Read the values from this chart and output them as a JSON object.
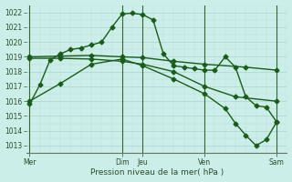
{
  "bg_color": "#cceee8",
  "grid_major_color": "#aad4ce",
  "grid_minor_color": "#bbddd8",
  "line_color": "#1a5c1a",
  "sep_line_color": "#336633",
  "title": "Pression niveau de la mer( hPa )",
  "ylim": [
    1012.5,
    1022.5
  ],
  "yticks": [
    1013,
    1014,
    1015,
    1016,
    1017,
    1018,
    1019,
    1020,
    1021,
    1022
  ],
  "day_labels": [
    "Mer",
    "Dim",
    "Jeu",
    "Ven",
    "Sam"
  ],
  "day_x": [
    0,
    9,
    11,
    17,
    24
  ],
  "xlim": [
    -0.3,
    25.0
  ],
  "series": [
    {
      "x": [
        0,
        1,
        2,
        3,
        4,
        5,
        6,
        7,
        8,
        9,
        10,
        11,
        12,
        13,
        14,
        15,
        16,
        17,
        18,
        19,
        20,
        21,
        22,
        23,
        24
      ],
      "y": [
        1015.8,
        1017.1,
        1018.8,
        1019.2,
        1019.5,
        1019.6,
        1019.8,
        1020.0,
        1021.0,
        1021.9,
        1021.95,
        1021.85,
        1021.5,
        1019.2,
        1018.4,
        1018.3,
        1018.2,
        1018.1,
        1018.1,
        1019.0,
        1018.3,
        1016.3,
        1015.7,
        1015.6,
        1014.6
      ],
      "marker": "D",
      "markersize": 2.5,
      "linewidth": 1.0
    },
    {
      "x": [
        0,
        3,
        6,
        9,
        11,
        14,
        17,
        21,
        24
      ],
      "y": [
        1019.0,
        1019.05,
        1019.1,
        1019.0,
        1018.95,
        1018.7,
        1018.5,
        1018.3,
        1018.1
      ],
      "marker": "D",
      "markersize": 2.5,
      "linewidth": 1.0
    },
    {
      "x": [
        0,
        3,
        6,
        9,
        11,
        14,
        17,
        20,
        24
      ],
      "y": [
        1018.9,
        1018.9,
        1018.85,
        1018.7,
        1018.5,
        1018.0,
        1017.0,
        1016.3,
        1016.0
      ],
      "marker": "D",
      "markersize": 2.5,
      "linewidth": 1.0
    },
    {
      "x": [
        0,
        3,
        6,
        9,
        11,
        14,
        17,
        19,
        20,
        21,
        22,
        23,
        24
      ],
      "y": [
        1016.0,
        1017.2,
        1018.5,
        1018.85,
        1018.4,
        1017.5,
        1016.5,
        1015.5,
        1014.5,
        1013.7,
        1013.0,
        1013.4,
        1014.6
      ],
      "marker": "D",
      "markersize": 2.5,
      "linewidth": 1.0
    }
  ]
}
